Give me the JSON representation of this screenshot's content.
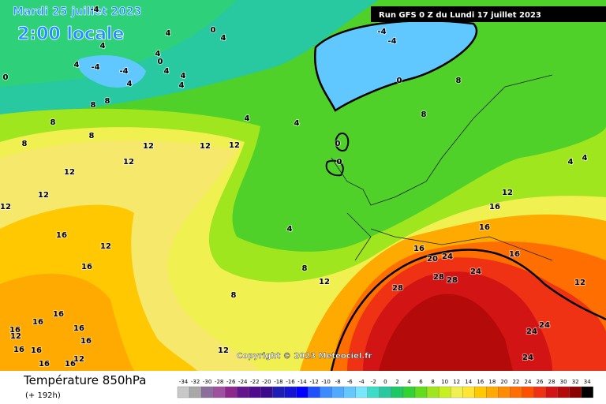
{
  "header": {
    "valid_date": "Mardi 25 juillet 2023",
    "local_time": "2:00 locale",
    "run": "Run GFS 0 Z du Lundi 17 juillet 2023",
    "copyright": "Copyright © 2023 Meteociel.fr"
  },
  "footer": {
    "title": "Température 850hPa",
    "lead": "(+ 192h)"
  },
  "scale": {
    "ticks": [
      -34,
      -32,
      -30,
      -28,
      -26,
      -24,
      -22,
      -20,
      -18,
      -16,
      -14,
      -12,
      -10,
      -8,
      -6,
      -4,
      -2,
      0,
      2,
      4,
      6,
      8,
      10,
      12,
      14,
      16,
      18,
      20,
      22,
      24,
      26,
      28,
      30,
      32,
      34
    ],
    "colors": [
      "#c8c8c8",
      "#a8a8a8",
      "#8c6e9c",
      "#a050a0",
      "#8c288c",
      "#64148c",
      "#500a8c",
      "#3c0a8c",
      "#1e1eb4",
      "#1414d2",
      "#0000ff",
      "#1e50ff",
      "#3c8cff",
      "#50aaff",
      "#64c8ff",
      "#78e6ff",
      "#3cdcc8",
      "#28c8a0",
      "#1ec864",
      "#32d232",
      "#64dc1e",
      "#a0e61e",
      "#c8f01e",
      "#f0f050",
      "#ffe632",
      "#ffc800",
      "#ffaa00",
      "#ff8c00",
      "#ff6e00",
      "#ff5000",
      "#f03214",
      "#d21414",
      "#b40a0a",
      "#8c0000",
      "#000000"
    ]
  },
  "contour_labels": [
    "-4",
    "4",
    "0",
    "4",
    "4",
    "4",
    "0",
    "4",
    "-4",
    "-4",
    "4",
    "4",
    "0",
    "4",
    "4",
    "8",
    "8",
    "8",
    "4",
    "4",
    "8",
    "0",
    "12",
    "12",
    "12",
    "8",
    "12",
    "12",
    "0",
    "12",
    "12",
    "4",
    "12",
    "16",
    "16",
    "8",
    "8",
    "12",
    "12",
    "16",
    "16",
    "16",
    "12",
    "16",
    "16",
    "16",
    "16",
    "16",
    "16",
    "12",
    "-4",
    "-4",
    "0",
    "8",
    "8",
    "4",
    "4",
    "12",
    "16",
    "16",
    "16",
    "20",
    "24",
    "16",
    "24",
    "28",
    "28",
    "28",
    "12",
    "24",
    "24",
    "24"
  ]
}
